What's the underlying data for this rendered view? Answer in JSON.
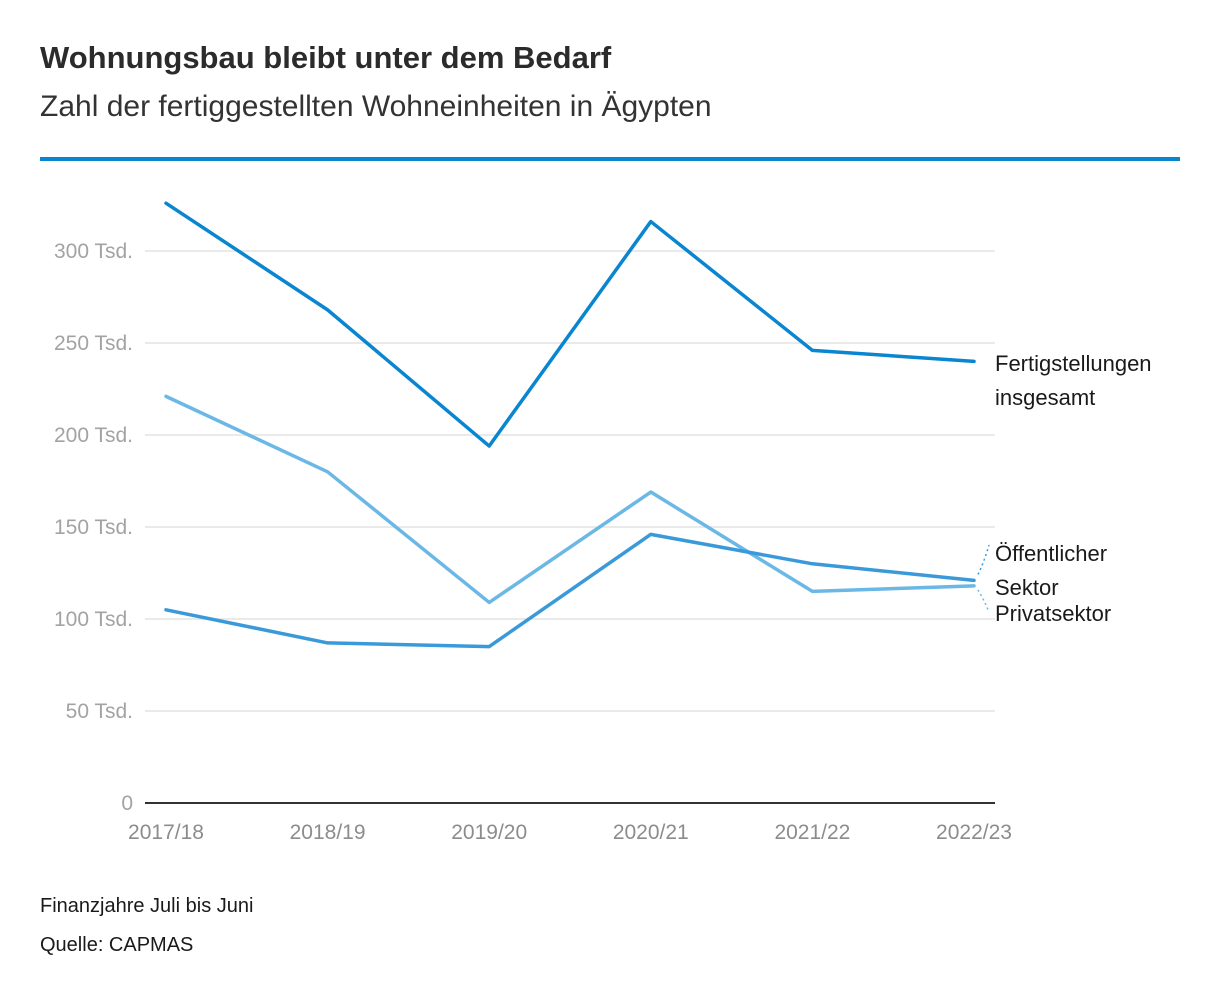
{
  "header": {
    "title": "Wohnungsbau bleibt unter dem Bedarf",
    "subtitle": "Zahl der fertiggestellten Wohneinheiten in Ägypten"
  },
  "footer": {
    "note": "Finanzjahre Juli bis Juni",
    "source": "Quelle: CAPMAS"
  },
  "colors": {
    "rule": "#0a85d0",
    "grid": "#e3e3e3",
    "axis": "#333333"
  },
  "chart_data": {
    "type": "line",
    "title": "Wohnungsbau bleibt unter dem Bedarf",
    "subtitle": "Zahl der fertiggestellten Wohneinheiten in Ägypten",
    "xlabel": "",
    "ylabel": "",
    "categories": [
      "2017/18",
      "2018/19",
      "2019/20",
      "2020/21",
      "2021/22",
      "2022/23"
    ],
    "ylim": [
      0,
      300000
    ],
    "yticks": [
      {
        "value": 0,
        "label": "0"
      },
      {
        "value": 50000,
        "label": "50 Tsd."
      },
      {
        "value": 100000,
        "label": "100 Tsd."
      },
      {
        "value": 150000,
        "label": "150 Tsd."
      },
      {
        "value": 200000,
        "label": "200 Tsd."
      },
      {
        "value": 250000,
        "label": "250 Tsd."
      },
      {
        "value": 300000,
        "label": "300 Tsd."
      }
    ],
    "grid": true,
    "series": [
      {
        "name": "Fertigstellungen insgesamt",
        "label_lines": [
          "Fertigstellungen",
          "insgesamt"
        ],
        "color": "#0a85d0",
        "values": [
          326000,
          268000,
          194000,
          316000,
          246000,
          240000
        ]
      },
      {
        "name": "Öffentlicher Sektor",
        "label_lines": [
          "Öffentlicher",
          "Sektor"
        ],
        "color": "#6bb8e6",
        "values": [
          221000,
          180000,
          109000,
          169000,
          115000,
          118000
        ]
      },
      {
        "name": "Privatsektor",
        "label_lines": [
          "Privatsektor"
        ],
        "color": "#3a9ad9",
        "values": [
          105000,
          87000,
          85000,
          146000,
          130000,
          121000
        ]
      }
    ]
  }
}
